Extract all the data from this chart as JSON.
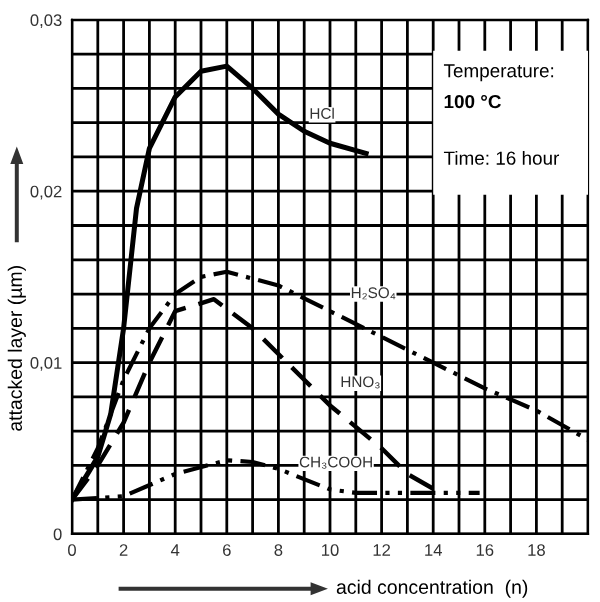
{
  "chart_data": {
    "type": "line",
    "xlabel": "acid concentration  (n)",
    "ylabel": "attacked layer (µm)",
    "xlim": [
      0,
      20
    ],
    "ylim": [
      0,
      0.03
    ],
    "xticks": [
      0,
      {
        "value": 1,
        "label": null
      },
      2,
      {
        "value": 3,
        "label": null
      },
      4,
      {
        "value": 5,
        "label": null
      },
      6,
      {
        "value": 7,
        "label": null
      },
      8,
      {
        "value": 9,
        "label": null
      },
      10,
      {
        "value": 11,
        "label": null
      },
      12,
      {
        "value": 13,
        "label": null
      },
      14,
      {
        "value": 15,
        "label": null
      },
      16,
      {
        "value": 17,
        "label": null
      },
      18,
      {
        "value": 19,
        "label": null
      },
      {
        "value": 20,
        "label": null
      }
    ],
    "yticks": [
      0,
      {
        "value": 0.002,
        "label": null
      },
      {
        "value": 0.004,
        "label": null
      },
      {
        "value": 0.006,
        "label": null
      },
      {
        "value": 0.008,
        "label": null
      },
      {
        "value": 0.01,
        "label": "0,01"
      },
      {
        "value": 0.012,
        "label": null
      },
      {
        "value": 0.014,
        "label": null
      },
      {
        "value": 0.016,
        "label": null
      },
      {
        "value": 0.018,
        "label": null
      },
      {
        "value": 0.02,
        "label": "0,02"
      },
      {
        "value": 0.022,
        "label": null
      },
      {
        "value": 0.024,
        "label": null
      },
      {
        "value": 0.026,
        "label": null
      },
      {
        "value": 0.028,
        "label": null
      },
      {
        "value": 0.03,
        "label": "0,03"
      }
    ],
    "grid": true,
    "marker": "none",
    "annotations": [
      "Temperature:",
      "100 °C",
      "Time: 16 hour"
    ],
    "series": [
      {
        "name": "HCl",
        "color": "#000000",
        "line_style": "solid",
        "x": [
          0,
          1,
          1.5,
          2,
          2.5,
          3,
          4,
          5,
          6,
          7,
          8,
          9,
          10,
          11.4
        ],
        "values": [
          0.002,
          0.0045,
          0.007,
          0.012,
          0.019,
          0.0225,
          0.0255,
          0.027,
          0.0273,
          0.026,
          0.0245,
          0.0235,
          0.0228,
          0.0222
        ]
      },
      {
        "name": "H₂SO₄",
        "color": "#000000",
        "line_style": "dashdot",
        "x": [
          0,
          1,
          2,
          3,
          4,
          5,
          6,
          8,
          10,
          12,
          14,
          16,
          18,
          20
        ],
        "values": [
          0.002,
          0.005,
          0.009,
          0.012,
          0.014,
          0.015,
          0.0153,
          0.0145,
          0.013,
          0.0115,
          0.01,
          0.0085,
          0.0072,
          0.0055
        ]
      },
      {
        "name": "HNO₃",
        "color": "#000000",
        "line_style": "dashed",
        "x": [
          0,
          1,
          2,
          3,
          4,
          5.5,
          7,
          8,
          9,
          10,
          12,
          13,
          14.4
        ],
        "values": [
          0.002,
          0.004,
          0.0065,
          0.01,
          0.013,
          0.0137,
          0.012,
          0.0105,
          0.009,
          0.0075,
          0.005,
          0.0035,
          0.0023
        ]
      },
      {
        "name": "CH₃COOH",
        "color": "#000000",
        "line_style": "dashdotdot",
        "x": [
          0,
          2,
          4,
          6,
          7,
          8,
          10,
          11,
          14,
          15.8
        ],
        "values": [
          0.002,
          0.0022,
          0.0035,
          0.0043,
          0.0042,
          0.0038,
          0.0026,
          0.0024,
          0.0024,
          0.0024
        ]
      }
    ]
  }
}
